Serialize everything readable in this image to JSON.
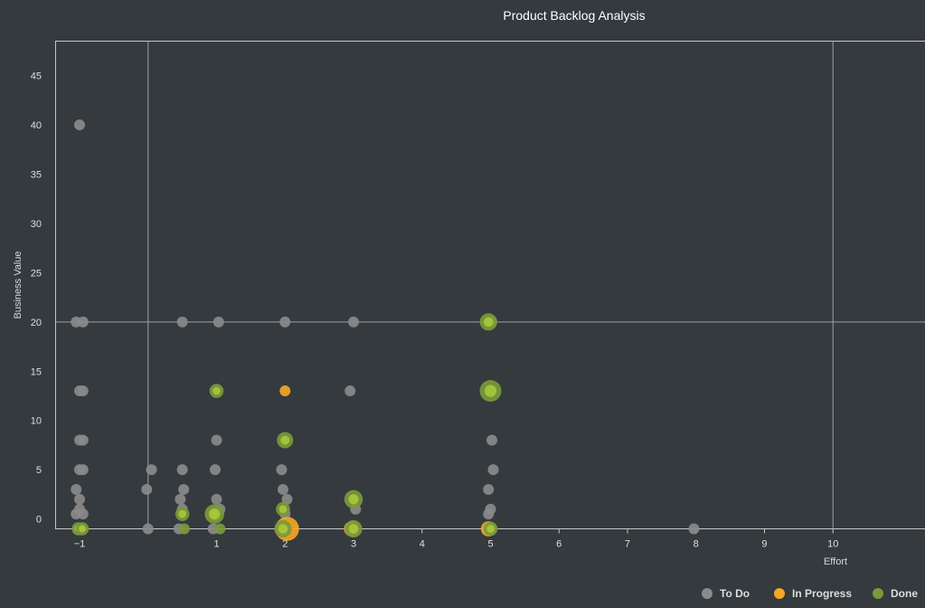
{
  "chart_data": {
    "type": "scatter",
    "title": "Product Backlog Analysis",
    "xlabel": "Effort",
    "ylabel": "Business Value",
    "x_ticks": [
      "-1",
      "1",
      "2",
      "3",
      "4",
      "5",
      "6",
      "7",
      "8",
      "9",
      "10"
    ],
    "y_ticks": [
      "0",
      "5",
      "10",
      "15",
      "20",
      "25",
      "30",
      "35",
      "40",
      "45"
    ],
    "xlim": [
      -1.35,
      11.35
    ],
    "ylim": [
      -1,
      48.5
    ],
    "reference_lines": {
      "x": [
        0,
        10
      ],
      "y": [
        20
      ]
    },
    "grid": false,
    "legend_position": "bottom-right",
    "series": [
      {
        "name": "To Do",
        "color": "#8a8a8a",
        "points": [
          {
            "x": -1.0,
            "y": 40,
            "size": 1
          },
          {
            "x": -1.05,
            "y": 20,
            "size": 1
          },
          {
            "x": -0.95,
            "y": 20,
            "size": 1
          },
          {
            "x": -1.0,
            "y": 13,
            "size": 1
          },
          {
            "x": -0.95,
            "y": 13,
            "size": 1
          },
          {
            "x": -1.0,
            "y": 8,
            "size": 1
          },
          {
            "x": -0.95,
            "y": 8,
            "size": 1
          },
          {
            "x": -1.0,
            "y": 5,
            "size": 1
          },
          {
            "x": -0.95,
            "y": 5,
            "size": 1
          },
          {
            "x": -1.05,
            "y": 3,
            "size": 1
          },
          {
            "x": -1.0,
            "y": 2,
            "size": 1
          },
          {
            "x": -1.0,
            "y": 1,
            "size": 1
          },
          {
            "x": -1.05,
            "y": 0.5,
            "size": 1
          },
          {
            "x": -0.95,
            "y": 0.5,
            "size": 1
          },
          {
            "x": 0.05,
            "y": 5,
            "size": 1
          },
          {
            "x": -0.02,
            "y": 3,
            "size": 1
          },
          {
            "x": 0.0,
            "y": -1,
            "size": 1
          },
          {
            "x": 0.5,
            "y": 20,
            "size": 1
          },
          {
            "x": 0.5,
            "y": 5,
            "size": 1
          },
          {
            "x": 0.52,
            "y": 3,
            "size": 1
          },
          {
            "x": 0.47,
            "y": 2,
            "size": 1
          },
          {
            "x": 0.5,
            "y": 1,
            "size": 1
          },
          {
            "x": 0.45,
            "y": -1,
            "size": 1
          },
          {
            "x": 1.03,
            "y": 20,
            "size": 1
          },
          {
            "x": 1.0,
            "y": 8,
            "size": 1
          },
          {
            "x": 0.98,
            "y": 5,
            "size": 1
          },
          {
            "x": 1.0,
            "y": 2,
            "size": 1
          },
          {
            "x": 1.05,
            "y": 1,
            "size": 1
          },
          {
            "x": 0.95,
            "y": -1,
            "size": 1
          },
          {
            "x": 2.0,
            "y": 20,
            "size": 1
          },
          {
            "x": 1.95,
            "y": 5,
            "size": 1
          },
          {
            "x": 1.97,
            "y": 3,
            "size": 1
          },
          {
            "x": 2.03,
            "y": 2,
            "size": 1
          },
          {
            "x": 2.0,
            "y": 0.5,
            "size": 1
          },
          {
            "x": 3.0,
            "y": 20,
            "size": 1
          },
          {
            "x": 2.95,
            "y": 13,
            "size": 1
          },
          {
            "x": 3.03,
            "y": 1,
            "size": 1
          },
          {
            "x": 5.02,
            "y": 20,
            "size": 1
          },
          {
            "x": 5.02,
            "y": 8,
            "size": 1
          },
          {
            "x": 5.04,
            "y": 5,
            "size": 1
          },
          {
            "x": 4.97,
            "y": 3,
            "size": 1
          },
          {
            "x": 5.0,
            "y": 1,
            "size": 1
          },
          {
            "x": 4.97,
            "y": 0.5,
            "size": 1
          },
          {
            "x": 7.97,
            "y": -1,
            "size": 1
          }
        ]
      },
      {
        "name": "In Progress",
        "color": "#f5a623",
        "points": [
          {
            "x": 2.0,
            "y": 13,
            "size": 1
          },
          {
            "x": 2.03,
            "y": -1,
            "size": 2.2
          },
          {
            "x": 2.97,
            "y": -1,
            "size": 1.4
          },
          {
            "x": 4.97,
            "y": -1,
            "size": 1.4
          },
          {
            "x": 0.97,
            "y": 0.5,
            "size": 1.2
          }
        ]
      },
      {
        "name": "Done",
        "color": "#7a9a3a",
        "points": [
          {
            "x": -1.02,
            "y": -1,
            "size": 1.2
          },
          {
            "x": -0.96,
            "y": -1,
            "size": 1.2
          },
          {
            "x": 0.5,
            "y": 0.5,
            "size": 1.3
          },
          {
            "x": 0.53,
            "y": -1,
            "size": 1
          },
          {
            "x": 1.0,
            "y": 13,
            "size": 1.3
          },
          {
            "x": 0.97,
            "y": 0.5,
            "size": 1.8
          },
          {
            "x": 1.05,
            "y": -1,
            "size": 1
          },
          {
            "x": 2.0,
            "y": 8,
            "size": 1.5
          },
          {
            "x": 1.97,
            "y": 1,
            "size": 1.3
          },
          {
            "x": 1.97,
            "y": -1,
            "size": 1.6
          },
          {
            "x": 3.0,
            "y": 2,
            "size": 1.7
          },
          {
            "x": 3.0,
            "y": -1,
            "size": 1.6
          },
          {
            "x": 4.97,
            "y": 20,
            "size": 1.6
          },
          {
            "x": 5.0,
            "y": 13,
            "size": 2.0
          },
          {
            "x": 5.0,
            "y": -1,
            "size": 1.3
          }
        ]
      }
    ]
  }
}
